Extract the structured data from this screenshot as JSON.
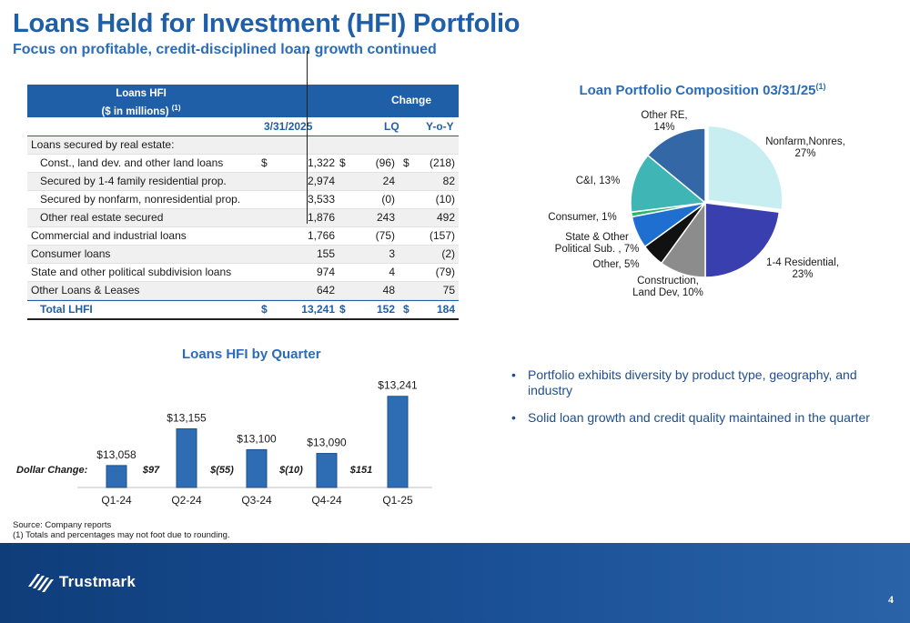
{
  "header": {
    "title": "Loans Held for Investment (HFI) Portfolio",
    "subtitle": "Focus on profitable, credit-disciplined loan growth continued"
  },
  "table": {
    "header_line1": "Loans HFI",
    "header_line2": "($ in millions)",
    "header_footnote": "(1)",
    "change_header": "Change",
    "col_date": "3/31/2025",
    "col_lq": "LQ",
    "col_yoy": "Y-o-Y",
    "rows": [
      {
        "label": "Loans secured by real estate:",
        "indent": false,
        "v1": "",
        "v2": "",
        "v3": "",
        "d1": "",
        "d2": "",
        "d3": ""
      },
      {
        "label": "Const., land dev. and other land loans",
        "indent": true,
        "v1": "1,322",
        "v2": "(96)",
        "v3": "(218)",
        "d1": "$",
        "d2": "$",
        "d3": "$"
      },
      {
        "label": "Secured by 1-4 family residential prop.",
        "indent": true,
        "v1": "2,974",
        "v2": "24",
        "v3": "82",
        "d1": "",
        "d2": "",
        "d3": ""
      },
      {
        "label": "Secured by nonfarm, nonresidential prop.",
        "indent": true,
        "v1": "3,533",
        "v2": "(0)",
        "v3": "(10)",
        "d1": "",
        "d2": "",
        "d3": ""
      },
      {
        "label": "Other real estate secured",
        "indent": true,
        "v1": "1,876",
        "v2": "243",
        "v3": "492",
        "d1": "",
        "d2": "",
        "d3": ""
      },
      {
        "label": "Commercial and industrial loans",
        "indent": false,
        "v1": "1,766",
        "v2": "(75)",
        "v3": "(157)",
        "d1": "",
        "d2": "",
        "d3": ""
      },
      {
        "label": "Consumer loans",
        "indent": false,
        "v1": "155",
        "v2": "3",
        "v3": "(2)",
        "d1": "",
        "d2": "",
        "d3": ""
      },
      {
        "label": "State and other political subdivision loans",
        "indent": false,
        "v1": "974",
        "v2": "4",
        "v3": "(79)",
        "d1": "",
        "d2": "",
        "d3": ""
      },
      {
        "label": "Other Loans & Leases",
        "indent": false,
        "v1": "642",
        "v2": "48",
        "v3": "75",
        "d1": "",
        "d2": "",
        "d3": ""
      }
    ],
    "total": {
      "label": "Total LHFI",
      "v1": "13,241",
      "v2": "152",
      "v3": "184",
      "d1": "$",
      "d2": "$",
      "d3": "$"
    }
  },
  "chart_data": [
    {
      "type": "pie",
      "title": "Loan Portfolio Composition 03/31/25",
      "title_footnote": "(1)",
      "slices": [
        {
          "line1": "Nonfarm,Nonres,",
          "line2": "27%",
          "value": 27,
          "color": "#c8eef2"
        },
        {
          "line1": "1-4 Residential,",
          "line2": "23%",
          "value": 23,
          "color": "#3a3fb0"
        },
        {
          "line1": "Construction,",
          "line2": "Land Dev, 10%",
          "value": 10,
          "color": "#8c8c8c"
        },
        {
          "line1": "Other, 5%",
          "line2": "",
          "value": 5,
          "color": "#111111"
        },
        {
          "line1": "State & Other",
          "line2": "Political Sub. , 7%",
          "value": 7,
          "color": "#1f6fd1"
        },
        {
          "line1": "Consumer, 1%",
          "line2": "",
          "value": 1,
          "color": "#2bb673"
        },
        {
          "line1": "C&I, 13%",
          "line2": "",
          "value": 13,
          "color": "#3fb5b5"
        },
        {
          "line1": "Other RE,",
          "line2": "14%",
          "value": 14,
          "color": "#3467a6"
        }
      ]
    },
    {
      "type": "bar",
      "title": "Loans HFI by Quarter",
      "categories": [
        "Q1-24",
        "Q2-24",
        "Q3-24",
        "Q4-24",
        "Q1-25"
      ],
      "values": [
        13058,
        13155,
        13100,
        13090,
        13241
      ],
      "value_labels": [
        "$13,058",
        "$13,155",
        "$13,100",
        "$13,090",
        "$13,241"
      ],
      "ylim": [
        13000,
        13250
      ],
      "bar_color": "#2e6db4",
      "dollar_change_label": "Dollar Change:",
      "dollar_changes": [
        "$97",
        "$(55)",
        "$(10)",
        "$151"
      ]
    }
  ],
  "bullets": [
    "Portfolio exhibits diversity by product type, geography, and industry",
    "Solid loan growth and credit quality maintained in the quarter"
  ],
  "source": {
    "line1": "Source: Company reports",
    "line2": "(1) Totals and percentages may not foot due to rounding."
  },
  "footer": {
    "logo_text": "Trustmark",
    "page_number": "4"
  }
}
